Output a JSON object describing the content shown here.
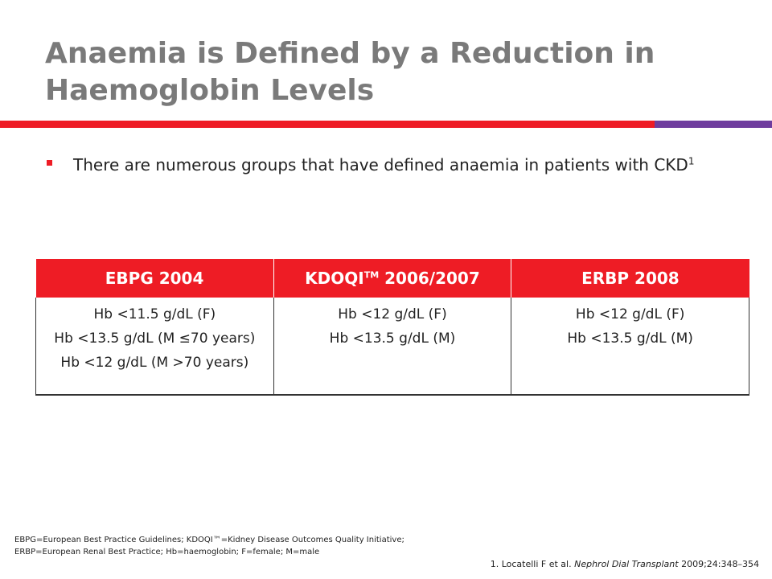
{
  "slide": {
    "title": "Anaemia is Defined by a Reduction in Haemoglobin Levels",
    "colors": {
      "title": "#7a7a7a",
      "accent_red": "#ee1c25",
      "accent_purple": "#6f3d9e"
    }
  },
  "bullet": {
    "text": "There are numerous groups that have defined anaemia in patients with CKD",
    "superscript": "1"
  },
  "table": {
    "headers": [
      {
        "main": "EBPG 2004",
        "sup": "",
        "rest": ""
      },
      {
        "main": "KDOQI",
        "sup": "TM",
        "rest": " 2006/2007"
      },
      {
        "main": "ERBP 2008",
        "sup": "",
        "rest": ""
      }
    ],
    "cells": [
      [
        "Hb <11.5 g/dL (F)",
        "Hb <13.5 g/dL (M ≤70 years)",
        "Hb <12 g/dL (M >70 years)"
      ],
      [
        "Hb <12 g/dL (F)",
        "Hb <13.5 g/dL (M)"
      ],
      [
        "Hb <12 g/dL (F)",
        "Hb <13.5 g/dL (M)"
      ]
    ]
  },
  "footnote": {
    "line1": "EBPG=European Best Practice Guidelines; KDOQI™=Kidney Disease Outcomes Quality Initiative;",
    "line2": "ERBP=European Renal Best Practice; Hb=haemoglobin; F=female; M=male"
  },
  "citation": {
    "prefix": "1. Locatelli F et al. ",
    "journal": "Nephrol Dial Transplant",
    "suffix": " 2009;24:348–354"
  }
}
